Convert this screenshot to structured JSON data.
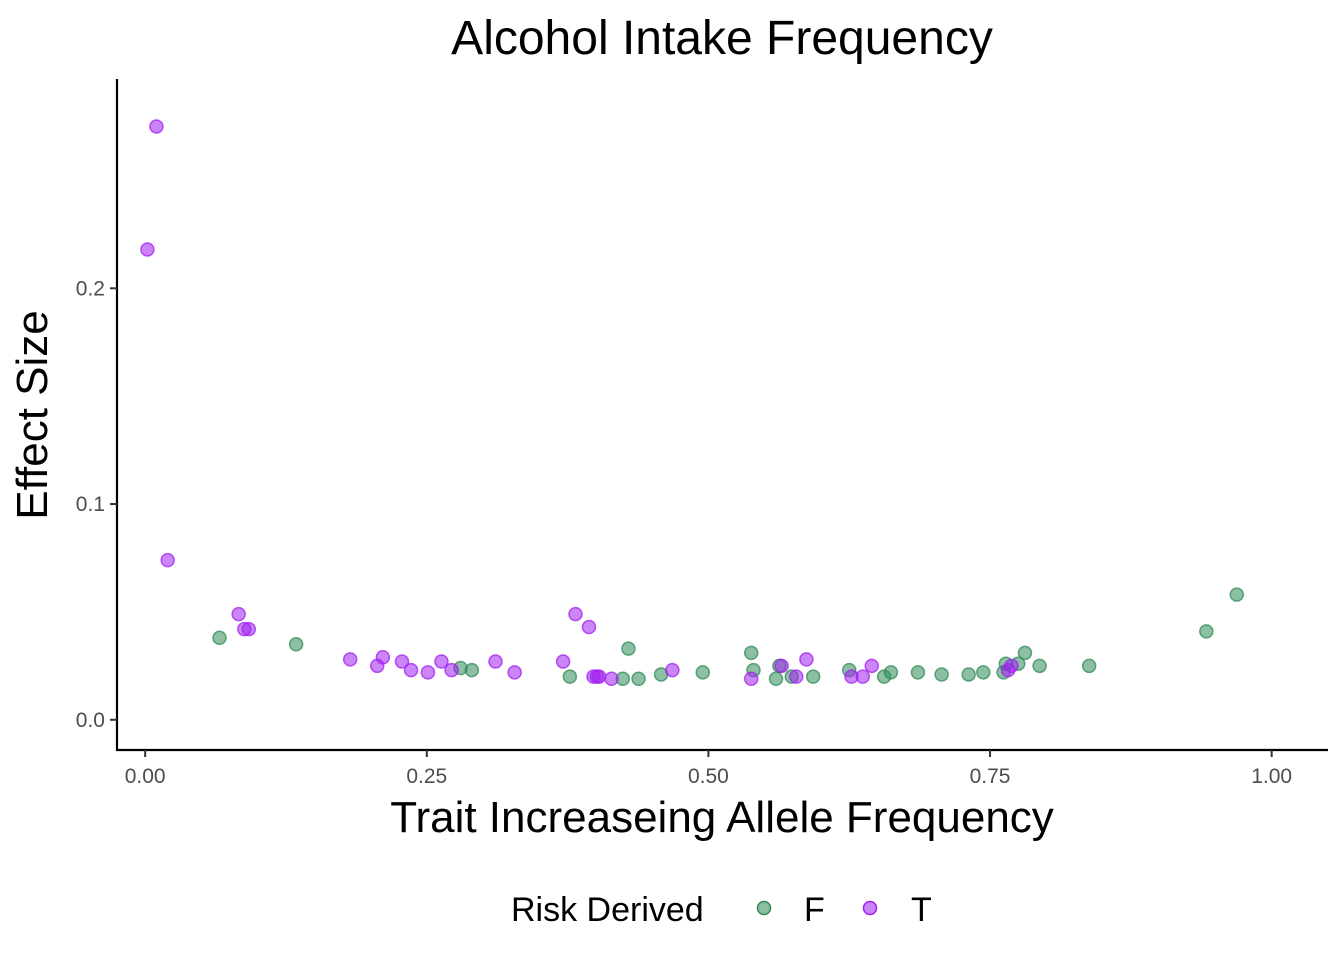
{
  "chart_data": {
    "type": "scatter",
    "title": "Alcohol Intake Frequency",
    "xlabel": "Trait Increaseing Allele Frequency",
    "ylabel": "Effect Size",
    "xlim": [
      -0.025,
      1.05
    ],
    "ylim": [
      -0.014,
      0.297
    ],
    "x_ticks": [
      0.0,
      0.25,
      0.5,
      0.75,
      1.0
    ],
    "x_tick_labels": [
      "0.00",
      "0.25",
      "0.50",
      "0.75",
      "1.00"
    ],
    "y_ticks": [
      0.0,
      0.1,
      0.2
    ],
    "y_tick_labels": [
      "0.0",
      "0.1",
      "0.2"
    ],
    "grid": false,
    "legend": {
      "title": "Risk Derived",
      "position": "bottom",
      "entries": [
        {
          "label": "F",
          "color": "#2e8b57"
        },
        {
          "label": "T",
          "color": "#a020f0"
        }
      ]
    },
    "series": [
      {
        "name": "F",
        "color": "#2e8b57",
        "points": [
          [
            0.066,
            0.038
          ],
          [
            0.134,
            0.035
          ],
          [
            0.28,
            0.024
          ],
          [
            0.29,
            0.023
          ],
          [
            0.377,
            0.02
          ],
          [
            0.424,
            0.019
          ],
          [
            0.429,
            0.033
          ],
          [
            0.438,
            0.019
          ],
          [
            0.458,
            0.021
          ],
          [
            0.495,
            0.022
          ],
          [
            0.538,
            0.031
          ],
          [
            0.54,
            0.023
          ],
          [
            0.56,
            0.019
          ],
          [
            0.563,
            0.025
          ],
          [
            0.574,
            0.02
          ],
          [
            0.593,
            0.02
          ],
          [
            0.625,
            0.023
          ],
          [
            0.656,
            0.02
          ],
          [
            0.662,
            0.022
          ],
          [
            0.686,
            0.022
          ],
          [
            0.707,
            0.021
          ],
          [
            0.731,
            0.021
          ],
          [
            0.744,
            0.022
          ],
          [
            0.762,
            0.022
          ],
          [
            0.764,
            0.026
          ],
          [
            0.775,
            0.026
          ],
          [
            0.781,
            0.031
          ],
          [
            0.794,
            0.025
          ],
          [
            0.838,
            0.025
          ],
          [
            0.942,
            0.041
          ],
          [
            0.969,
            0.058
          ]
        ]
      },
      {
        "name": "T",
        "color": "#a020f0",
        "points": [
          [
            0.002,
            0.218
          ],
          [
            0.01,
            0.275
          ],
          [
            0.02,
            0.074
          ],
          [
            0.083,
            0.049
          ],
          [
            0.088,
            0.042
          ],
          [
            0.092,
            0.042
          ],
          [
            0.182,
            0.028
          ],
          [
            0.206,
            0.025
          ],
          [
            0.211,
            0.029
          ],
          [
            0.228,
            0.027
          ],
          [
            0.236,
            0.023
          ],
          [
            0.251,
            0.022
          ],
          [
            0.263,
            0.027
          ],
          [
            0.272,
            0.023
          ],
          [
            0.311,
            0.027
          ],
          [
            0.328,
            0.022
          ],
          [
            0.371,
            0.027
          ],
          [
            0.382,
            0.049
          ],
          [
            0.394,
            0.043
          ],
          [
            0.398,
            0.02
          ],
          [
            0.401,
            0.02
          ],
          [
            0.403,
            0.02
          ],
          [
            0.414,
            0.019
          ],
          [
            0.468,
            0.023
          ],
          [
            0.538,
            0.019
          ],
          [
            0.565,
            0.025
          ],
          [
            0.578,
            0.02
          ],
          [
            0.587,
            0.028
          ],
          [
            0.627,
            0.02
          ],
          [
            0.637,
            0.02
          ],
          [
            0.645,
            0.025
          ],
          [
            0.766,
            0.023
          ],
          [
            0.769,
            0.025
          ]
        ]
      }
    ]
  }
}
